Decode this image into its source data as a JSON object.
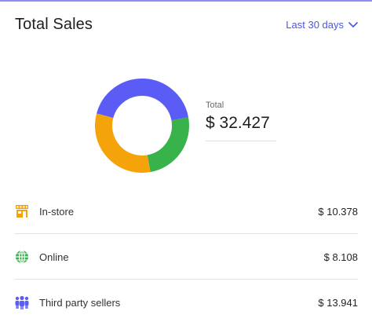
{
  "header": {
    "title": "Total Sales",
    "range_label": "Last 30 days",
    "range_icon": "chevron-down-icon"
  },
  "summary": {
    "total_label": "Total",
    "total_value": "$ 32.427"
  },
  "colors": {
    "accent": "#4b56e8",
    "in_store": "#f5a30a",
    "online": "#38b24a",
    "third_party": "#5b5cf5"
  },
  "chart_data": {
    "type": "pie",
    "donut": true,
    "slices": [
      {
        "name": "Third party sellers",
        "value": 13941,
        "color": "#5b5cf5"
      },
      {
        "name": "Online",
        "value": 8108,
        "color": "#38b24a"
      },
      {
        "name": "In-store",
        "value": 10378,
        "color": "#f5a30a"
      }
    ]
  },
  "channels": [
    {
      "label": "In-store",
      "value": "$ 10.378",
      "icon": "store-icon"
    },
    {
      "label": "Online",
      "value": "$ 8.108",
      "icon": "globe-icon"
    },
    {
      "label": "Third party sellers",
      "value": "$ 13.941",
      "icon": "people-icon"
    }
  ]
}
